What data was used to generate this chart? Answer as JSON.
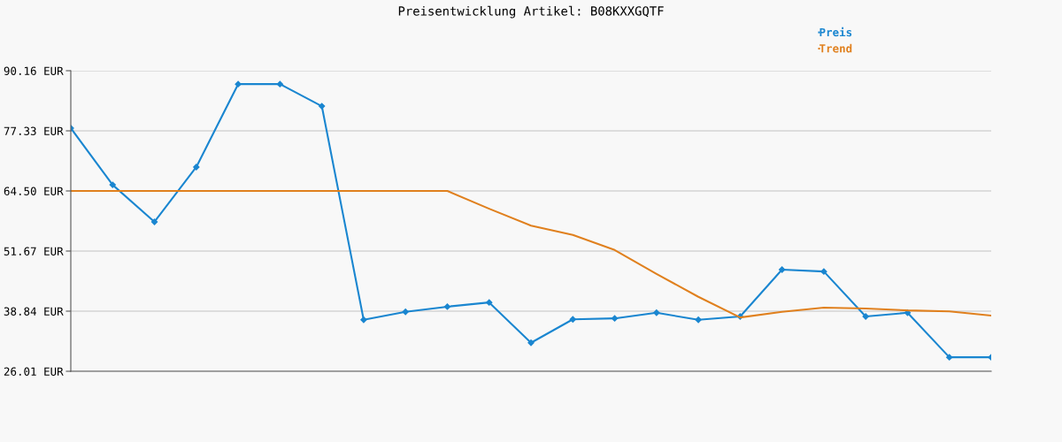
{
  "chart_data": {
    "type": "line",
    "title": "Preisentwicklung Artikel: B08KXXGQTF",
    "categories": [
      null,
      null,
      null,
      null,
      null,
      null,
      null,
      null,
      null,
      null,
      null,
      null,
      null,
      null,
      null,
      null,
      null,
      null,
      null,
      null,
      null,
      null,
      null
    ],
    "series": [
      {
        "name": "Preis",
        "color": "#1a86d0",
        "marker": "diamond",
        "values": [
          77.9,
          65.8,
          57.9,
          69.6,
          87.3,
          87.3,
          82.6,
          37.0,
          38.7,
          39.8,
          40.7,
          32.1,
          37.1,
          37.3,
          38.5,
          37.0,
          37.7,
          47.7,
          47.3,
          37.7,
          38.5,
          29.0,
          29.0
        ]
      },
      {
        "name": "Trend",
        "color": "#e0801e",
        "marker": "none",
        "values": [
          64.5,
          64.5,
          64.5,
          64.5,
          64.5,
          64.5,
          64.5,
          64.5,
          64.5,
          64.5,
          60.7,
          57.1,
          55.1,
          51.9,
          46.8,
          41.9,
          37.5,
          38.7,
          39.6,
          39.4,
          39.0,
          38.8,
          37.9
        ]
      }
    ],
    "ylim": [
      26.01,
      90.16
    ],
    "yticks": [
      {
        "value": 26.01,
        "label": "26.01 EUR"
      },
      {
        "value": 38.84,
        "label": "38.84 EUR"
      },
      {
        "value": 51.67,
        "label": "51.67 EUR"
      },
      {
        "value": 64.5,
        "label": "64.50 EUR"
      },
      {
        "value": 77.33,
        "label": "77.33 EUR"
      },
      {
        "value": 90.16,
        "label": "90.16 EUR"
      }
    ],
    "grid": "y",
    "legend": "top right",
    "line_style": "solid"
  }
}
